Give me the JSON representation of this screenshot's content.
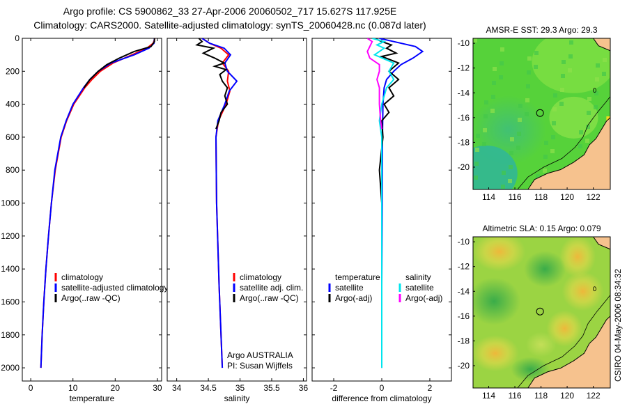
{
  "header": {
    "title_line1": "Argo profile: CS 5900862_33 27-Apr-2006 20060502_717 15.627S 117.925E",
    "title_line2": "Climatology: CARS2000. Satellite-adjusted climatology: synTS_20060428.nc (0.087d later)"
  },
  "stamp": "CSIRO 04-May-2006 08:34:32",
  "colors": {
    "climatology": "#ff0000",
    "satellite": "#0000ff",
    "argo": "#000000",
    "cyan": "#00e5ee",
    "magenta": "#ff00ff"
  },
  "chart_data": [
    {
      "id": "temperature",
      "type": "line",
      "xlabel": "temperature",
      "ylabel": "",
      "xlim": [
        -2,
        31
      ],
      "ylim": [
        2080,
        0
      ],
      "xticks": [
        0,
        10,
        20,
        30
      ],
      "yticks": [
        0,
        200,
        400,
        600,
        800,
        1000,
        1200,
        1400,
        1600,
        1800,
        2000
      ],
      "legend": [
        {
          "label": "climatology",
          "color": "#ff0000"
        },
        {
          "label": "satellite-adjusted climatology",
          "color": "#0000ff"
        },
        {
          "label": "Argo(..raw -QC)",
          "color": "#000000"
        }
      ],
      "series": [
        {
          "name": "climatology",
          "color": "#ff0000",
          "depth": [
            0,
            30,
            60,
            100,
            150,
            200,
            250,
            300,
            400,
            500,
            600,
            800,
            1000,
            1200,
            1400,
            1600,
            1800,
            2000
          ],
          "values": [
            29.4,
            29.0,
            27.5,
            24.0,
            19.5,
            16.5,
            14.5,
            12.8,
            10.2,
            8.5,
            7.2,
            5.8,
            4.9,
            4.2,
            3.6,
            3.1,
            2.7,
            2.4
          ]
        },
        {
          "name": "satellite-adjusted climatology",
          "color": "#0000ff",
          "depth": [
            0,
            30,
            60,
            100,
            150,
            200,
            250,
            300,
            400,
            500,
            600,
            800,
            1000,
            1200,
            1400,
            1600,
            1800,
            2000
          ],
          "values": [
            29.3,
            29.2,
            28.0,
            24.5,
            19.0,
            16.0,
            14.0,
            12.5,
            10.0,
            8.4,
            7.1,
            5.7,
            4.9,
            4.2,
            3.6,
            3.1,
            2.7,
            2.4
          ]
        },
        {
          "name": "Argo(..raw -QC)",
          "color": "#000000",
          "depth": [
            0,
            20,
            50,
            80,
            120,
            160,
            200,
            250,
            300
          ],
          "values": [
            29.3,
            29.3,
            28.5,
            24.5,
            21.0,
            18.0,
            16.0,
            14.0,
            12.6
          ]
        }
      ]
    },
    {
      "id": "salinity",
      "type": "line",
      "xlabel": "salinity",
      "xlim": [
        33.85,
        36.05
      ],
      "ylim": [
        2080,
        0
      ],
      "xticks": [
        34,
        34.5,
        35,
        35.5,
        36
      ],
      "legend": [
        {
          "label": "climatology",
          "color": "#ff0000"
        },
        {
          "label": "satellite adj. clim.",
          "color": "#0000ff"
        },
        {
          "label": "Argo(..raw -QC)",
          "color": "#000000"
        }
      ],
      "annotation": [
        "Argo AUSTRALIA",
        "PI: Susan Wijffels"
      ],
      "series": [
        {
          "name": "climatology",
          "color": "#ff0000",
          "depth": [
            0,
            30,
            60,
            100,
            150,
            200,
            260,
            320,
            400,
            500,
            600,
            1000,
            1500,
            2000
          ],
          "values": [
            34.4,
            34.52,
            34.7,
            34.82,
            34.72,
            34.82,
            34.8,
            34.84,
            34.78,
            34.66,
            34.62,
            34.63,
            34.67,
            34.72
          ]
        },
        {
          "name": "satellite adj. clim.",
          "color": "#0000ff",
          "depth": [
            0,
            30,
            60,
            100,
            150,
            200,
            260,
            320,
            400,
            500,
            600,
            1000,
            1500,
            2000
          ],
          "values": [
            34.4,
            34.52,
            34.75,
            34.85,
            34.76,
            34.8,
            34.95,
            34.83,
            34.76,
            34.65,
            34.62,
            34.63,
            34.67,
            34.72
          ]
        },
        {
          "name": "Argo(..raw -QC)",
          "color": "#000000",
          "depth": [
            0,
            20,
            40,
            60,
            90,
            120,
            150,
            170,
            190,
            220,
            260,
            300,
            350,
            400,
            450,
            500,
            550
          ],
          "values": [
            34.35,
            34.4,
            34.32,
            34.58,
            34.42,
            34.6,
            34.75,
            34.6,
            34.78,
            34.68,
            34.72,
            34.8,
            34.76,
            34.8,
            34.7,
            34.67,
            34.62
          ]
        }
      ]
    },
    {
      "id": "difference",
      "type": "line",
      "xlabel": "difference from climatology",
      "xlim": [
        -2.9,
        2.9
      ],
      "ylim": [
        2080,
        0
      ],
      "xticks": [
        -2,
        0,
        2
      ],
      "legend_left": {
        "title": "temperature",
        "items": [
          {
            "label": "satellite",
            "color": "#0000ff"
          },
          {
            "label": "Argo(-adj)",
            "color": "#000000"
          }
        ]
      },
      "legend_right": {
        "title": "salinity",
        "items": [
          {
            "label": "satellite",
            "color": "#00e5ee"
          },
          {
            "label": "Argo(-adj)",
            "color": "#ff00ff"
          }
        ]
      },
      "series": [
        {
          "name": "temperature satellite",
          "color": "#0000ff",
          "depth": [
            0,
            20,
            50,
            80,
            120,
            160,
            200,
            250,
            300,
            400,
            600,
            1000,
            1500,
            2000
          ],
          "values": [
            -0.1,
            0.5,
            1.4,
            1.7,
            1.3,
            0.8,
            0.5,
            0.2,
            0.1,
            0.05,
            0.03,
            0.02,
            0.0,
            0.0
          ]
        },
        {
          "name": "temperature Argo(-adj)",
          "color": "#000000",
          "depth": [
            0,
            20,
            40,
            60,
            90,
            110,
            150,
            200,
            250,
            300,
            350,
            400,
            450,
            500,
            600,
            800,
            1000
          ],
          "values": [
            -0.3,
            0.0,
            0.4,
            0.2,
            0.6,
            0.0,
            0.7,
            0.3,
            0.7,
            0.3,
            0.5,
            0.1,
            0.3,
            0.0,
            0.05,
            -0.1,
            0.0
          ]
        },
        {
          "name": "salinity satellite",
          "color": "#00e5ee",
          "depth": [
            0,
            20,
            40,
            60,
            100,
            150,
            200,
            250,
            300,
            400,
            500,
            600,
            1000,
            2000
          ],
          "values": [
            -0.4,
            0.1,
            -0.2,
            0.1,
            -0.3,
            0.5,
            0.3,
            0.5,
            0.2,
            0.0,
            -0.1,
            0.0,
            0.0,
            0.0
          ]
        },
        {
          "name": "salinity Argo(-adj)",
          "color": "#ff00ff",
          "depth": [
            0,
            20,
            50,
            80,
            120,
            160,
            200,
            250,
            300,
            400,
            500,
            550
          ],
          "values": [
            -0.6,
            -0.4,
            -0.5,
            -0.6,
            -0.5,
            -0.1,
            -0.1,
            -0.2,
            -0.1,
            -0.1,
            -0.05,
            0.0
          ]
        }
      ]
    },
    {
      "id": "sst-map",
      "type": "heatmap",
      "title": "AMSR-E SST: 29.3 Argo: 29.3",
      "xlim": [
        112.8,
        123.3
      ],
      "ylim": [
        -21.8,
        -9.6
      ],
      "xticks": [
        114,
        116,
        118,
        120,
        122
      ],
      "yticks": [
        -10,
        -12,
        -14,
        -16,
        -18,
        -20
      ],
      "float_position": {
        "lon": 117.925,
        "lat": -15.627
      }
    },
    {
      "id": "sla-map",
      "type": "heatmap",
      "title": "Altimetric SLA: 0.15 Argo: 0.079",
      "xlim": [
        112.8,
        123.3
      ],
      "ylim": [
        -21.8,
        -9.6
      ],
      "xticks": [
        114,
        116,
        118,
        120,
        122
      ],
      "yticks": [
        -10,
        -12,
        -14,
        -16,
        -18,
        -20
      ],
      "float_position": {
        "lon": 117.925,
        "lat": -15.627
      }
    }
  ]
}
